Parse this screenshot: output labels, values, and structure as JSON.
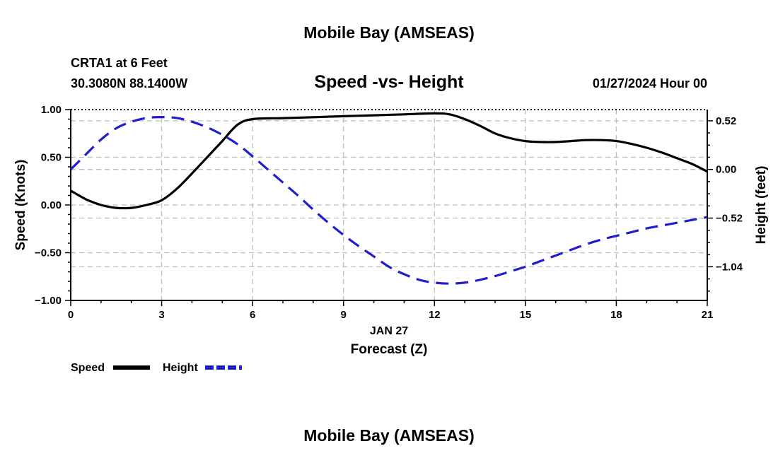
{
  "header": {
    "main_title": "Mobile Bay (AMSEAS)",
    "station": "CRTA1 at 6 Feet",
    "coords": "30.3080N  88.1400W",
    "plot_title": "Speed -vs- Height",
    "datetime": "01/27/2024 Hour 00"
  },
  "footer": {
    "title": "Mobile Bay (AMSEAS)"
  },
  "chart_data": {
    "type": "line",
    "xlabel": "Forecast (Z)",
    "date_label": "JAN 27",
    "ylabel_left": "Speed (Knots)",
    "ylabel_right": "Height (feet)",
    "x_ticks": [
      0,
      3,
      6,
      9,
      12,
      15,
      18,
      21
    ],
    "x_tick_labels": [
      "0",
      "3",
      "6",
      "9",
      "12",
      "15",
      "18",
      "21"
    ],
    "xlim": [
      0,
      21
    ],
    "ylim_left": [
      -1.0,
      1.0
    ],
    "y_ticks_left": [
      1.0,
      0.5,
      0.0,
      -0.5,
      -1.0
    ],
    "y_tick_labels_left": [
      "1.00",
      "0.50",
      "0.00",
      "−0.50",
      "−1.00"
    ],
    "ylim_right": [
      -1.4,
      0.64
    ],
    "y_ticks_right": [
      0.52,
      0.0,
      -0.52,
      -1.04
    ],
    "y_tick_labels_right": [
      "0.52",
      "0.00",
      "−0.52",
      "−1.04"
    ],
    "grid": true,
    "series": [
      {
        "name": "Speed",
        "axis": "left",
        "color": "#000000",
        "style": "solid",
        "x": [
          0,
          0.5,
          1,
          1.5,
          2,
          2.5,
          3,
          3.5,
          4,
          4.5,
          5,
          5.5,
          6,
          7,
          8,
          9,
          10,
          11,
          12,
          12.5,
          13,
          13.5,
          14,
          14.5,
          15,
          15.5,
          16,
          16.5,
          17,
          17.5,
          18,
          18.5,
          19,
          19.5,
          20,
          20.5,
          21
        ],
        "values": [
          0.15,
          0.06,
          0.0,
          -0.03,
          -0.03,
          0.0,
          0.05,
          0.17,
          0.33,
          0.5,
          0.67,
          0.84,
          0.9,
          0.91,
          0.92,
          0.93,
          0.94,
          0.95,
          0.96,
          0.95,
          0.9,
          0.83,
          0.75,
          0.7,
          0.67,
          0.66,
          0.66,
          0.67,
          0.68,
          0.68,
          0.67,
          0.64,
          0.6,
          0.55,
          0.49,
          0.43,
          0.35
        ]
      },
      {
        "name": "Height",
        "axis": "right",
        "color": "#1f1fcc",
        "style": "dashed",
        "x": [
          0,
          0.5,
          1,
          1.5,
          2,
          2.5,
          3,
          3.5,
          4,
          4.5,
          5,
          5.5,
          6,
          6.5,
          7,
          7.5,
          8,
          8.5,
          9,
          9.5,
          10,
          10.5,
          11,
          11.5,
          12,
          12.5,
          13,
          13.5,
          14,
          14.5,
          15,
          15.5,
          16,
          16.5,
          17,
          17.5,
          18,
          18.5,
          19,
          19.5,
          20,
          20.5,
          21
        ],
        "values": [
          0.0,
          0.16,
          0.32,
          0.44,
          0.51,
          0.55,
          0.56,
          0.55,
          0.51,
          0.45,
          0.37,
          0.27,
          0.14,
          0.0,
          -0.14,
          -0.28,
          -0.43,
          -0.57,
          -0.7,
          -0.82,
          -0.93,
          -1.04,
          -1.12,
          -1.18,
          -1.21,
          -1.22,
          -1.21,
          -1.18,
          -1.14,
          -1.09,
          -1.04,
          -0.98,
          -0.92,
          -0.86,
          -0.8,
          -0.75,
          -0.71,
          -0.67,
          -0.63,
          -0.6,
          -0.57,
          -0.54,
          -0.51
        ]
      }
    ],
    "legend": {
      "position": "bottom-left",
      "entries": [
        {
          "label": "Speed",
          "color": "#000000"
        },
        {
          "label": "Height",
          "color": "#1f1fcc"
        }
      ]
    }
  }
}
